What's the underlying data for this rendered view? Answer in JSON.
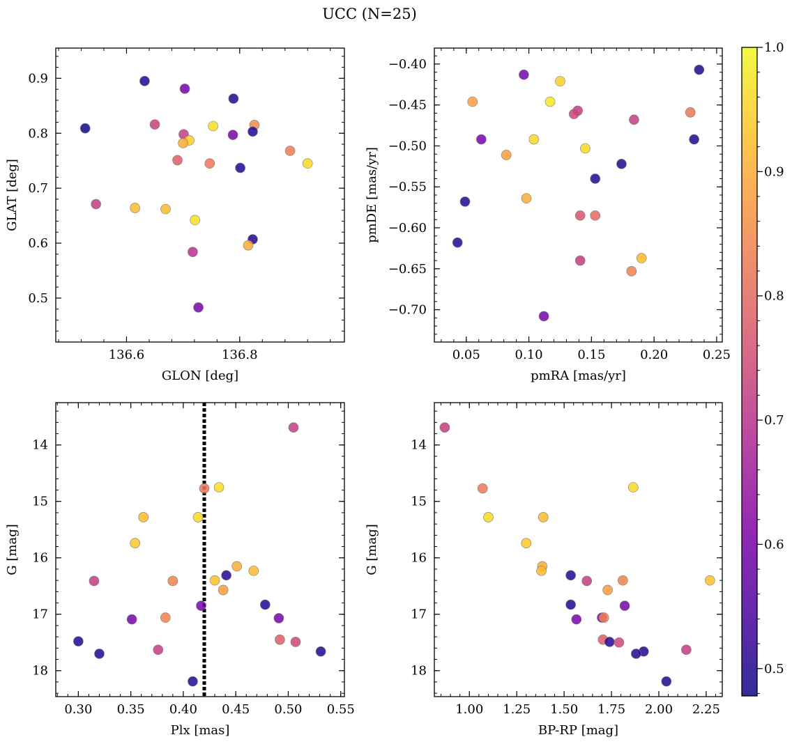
{
  "title": "UCC (N=25)",
  "colorbar": {
    "range": [
      0.478,
      1.0
    ],
    "ticks": [
      0.5,
      0.6,
      0.7,
      0.8,
      0.9,
      1.0
    ],
    "tick_labels": [
      "0.5",
      "0.6",
      "0.7",
      "0.8",
      "0.9",
      "1.0"
    ],
    "colormap": "plasma"
  },
  "chart_data": [
    {
      "type": "scatter",
      "xlabel": "GLON [deg]",
      "ylabel": "GLAT [deg]",
      "xlim": [
        136.475,
        136.985
      ],
      "ylim": [
        0.42,
        0.955
      ],
      "xticks": [
        136.6,
        136.8
      ],
      "xtick_labels": [
        "136.6",
        "136.8"
      ],
      "yticks": [
        0.5,
        0.6,
        0.7,
        0.8,
        0.9
      ],
      "ytick_labels": [
        "0.5",
        "0.6",
        "0.7",
        "0.8",
        "0.9"
      ],
      "points": [
        {
          "x": 136.527,
          "y": 0.809,
          "c": 0.48
        },
        {
          "x": 136.632,
          "y": 0.895,
          "c": 0.5
        },
        {
          "x": 136.703,
          "y": 0.881,
          "c": 0.6
        },
        {
          "x": 136.789,
          "y": 0.863,
          "c": 0.5
        },
        {
          "x": 136.65,
          "y": 0.816,
          "c": 0.73
        },
        {
          "x": 136.753,
          "y": 0.813,
          "c": 0.97
        },
        {
          "x": 136.826,
          "y": 0.815,
          "c": 0.85
        },
        {
          "x": 136.701,
          "y": 0.798,
          "c": 0.72
        },
        {
          "x": 136.788,
          "y": 0.797,
          "c": 0.6
        },
        {
          "x": 136.823,
          "y": 0.803,
          "c": 0.5
        },
        {
          "x": 136.711,
          "y": 0.787,
          "c": 0.95
        },
        {
          "x": 136.7,
          "y": 0.782,
          "c": 0.9
        },
        {
          "x": 136.889,
          "y": 0.768,
          "c": 0.83
        },
        {
          "x": 136.92,
          "y": 0.745,
          "c": 0.96
        },
        {
          "x": 136.69,
          "y": 0.751,
          "c": 0.78
        },
        {
          "x": 136.747,
          "y": 0.745,
          "c": 0.82
        },
        {
          "x": 136.801,
          "y": 0.737,
          "c": 0.5
        },
        {
          "x": 136.546,
          "y": 0.671,
          "c": 0.72
        },
        {
          "x": 136.615,
          "y": 0.664,
          "c": 0.92
        },
        {
          "x": 136.669,
          "y": 0.662,
          "c": 0.92
        },
        {
          "x": 136.721,
          "y": 0.642,
          "c": 0.97
        },
        {
          "x": 136.823,
          "y": 0.607,
          "c": 0.5
        },
        {
          "x": 136.815,
          "y": 0.596,
          "c": 0.9
        },
        {
          "x": 136.717,
          "y": 0.584,
          "c": 0.7
        },
        {
          "x": 136.727,
          "y": 0.483,
          "c": 0.6
        }
      ]
    },
    {
      "type": "scatter",
      "xlabel": "pmRA [mas/yr]",
      "ylabel": "pmDE [mas/yr]",
      "xlim": [
        0.0245,
        0.2545
      ],
      "ylim": [
        -0.7395,
        -0.3805
      ],
      "xticks": [
        0.05,
        0.1,
        0.15,
        0.2,
        0.25
      ],
      "xtick_labels": [
        "0.05",
        "0.10",
        "0.15",
        "0.20",
        "0.25"
      ],
      "yticks": [
        -0.4,
        -0.45,
        -0.5,
        -0.55,
        -0.6,
        -0.65,
        -0.7
      ],
      "ytick_labels": [
        "−0.40",
        "−0.45",
        "−0.50",
        "−0.55",
        "−0.60",
        "−0.65",
        "−0.70"
      ],
      "points": [
        {
          "x": 0.236,
          "y": -0.407,
          "c": 0.5
        },
        {
          "x": 0.096,
          "y": -0.413,
          "c": 0.6
        },
        {
          "x": 0.125,
          "y": -0.421,
          "c": 0.95
        },
        {
          "x": 0.055,
          "y": -0.446,
          "c": 0.88
        },
        {
          "x": 0.117,
          "y": -0.446,
          "c": 0.98
        },
        {
          "x": 0.139,
          "y": -0.457,
          "c": 0.72
        },
        {
          "x": 0.136,
          "y": -0.461,
          "c": 0.74
        },
        {
          "x": 0.229,
          "y": -0.459,
          "c": 0.82
        },
        {
          "x": 0.184,
          "y": -0.468,
          "c": 0.72
        },
        {
          "x": 0.062,
          "y": -0.492,
          "c": 0.6
        },
        {
          "x": 0.104,
          "y": -0.492,
          "c": 0.96
        },
        {
          "x": 0.232,
          "y": -0.492,
          "c": 0.5
        },
        {
          "x": 0.145,
          "y": -0.503,
          "c": 0.96
        },
        {
          "x": 0.082,
          "y": -0.511,
          "c": 0.88
        },
        {
          "x": 0.174,
          "y": -0.522,
          "c": 0.5
        },
        {
          "x": 0.153,
          "y": -0.54,
          "c": 0.5
        },
        {
          "x": 0.049,
          "y": -0.568,
          "c": 0.5
        },
        {
          "x": 0.098,
          "y": -0.564,
          "c": 0.9
        },
        {
          "x": 0.141,
          "y": -0.585,
          "c": 0.76
        },
        {
          "x": 0.153,
          "y": -0.585,
          "c": 0.8
        },
        {
          "x": 0.043,
          "y": -0.618,
          "c": 0.5
        },
        {
          "x": 0.19,
          "y": -0.637,
          "c": 0.92
        },
        {
          "x": 0.141,
          "y": -0.64,
          "c": 0.72
        },
        {
          "x": 0.182,
          "y": -0.653,
          "c": 0.84
        },
        {
          "x": 0.112,
          "y": -0.708,
          "c": 0.6
        }
      ]
    },
    {
      "type": "scatter",
      "xlabel": "Plx [mas]",
      "ylabel": "G [mag]",
      "xlim": [
        0.2785,
        0.5535
      ],
      "ylim": [
        18.46,
        13.25
      ],
      "y_inverted": true,
      "xticks": [
        0.3,
        0.35,
        0.4,
        0.45,
        0.5,
        0.55
      ],
      "xtick_labels": [
        "0.30",
        "0.35",
        "0.40",
        "0.45",
        "0.50",
        "0.55"
      ],
      "yticks": [
        14,
        15,
        16,
        17,
        18
      ],
      "ytick_labels": [
        "14",
        "15",
        "16",
        "17",
        "18"
      ],
      "vline": 0.42,
      "points": [
        {
          "x": 0.505,
          "y": 13.69,
          "c": 0.72
        },
        {
          "x": 0.42,
          "y": 14.77,
          "c": 0.82
        },
        {
          "x": 0.434,
          "y": 14.75,
          "c": 0.96
        },
        {
          "x": 0.362,
          "y": 15.28,
          "c": 0.92
        },
        {
          "x": 0.414,
          "y": 15.28,
          "c": 0.96
        },
        {
          "x": 0.354,
          "y": 15.74,
          "c": 0.94
        },
        {
          "x": 0.451,
          "y": 16.15,
          "c": 0.9
        },
        {
          "x": 0.467,
          "y": 16.23,
          "c": 0.92
        },
        {
          "x": 0.441,
          "y": 16.31,
          "c": 0.5
        },
        {
          "x": 0.39,
          "y": 16.41,
          "c": 0.84
        },
        {
          "x": 0.43,
          "y": 16.4,
          "c": 0.93
        },
        {
          "x": 0.315,
          "y": 16.41,
          "c": 0.72
        },
        {
          "x": 0.438,
          "y": 16.57,
          "c": 0.88
        },
        {
          "x": 0.417,
          "y": 16.85,
          "c": 0.6
        },
        {
          "x": 0.478,
          "y": 16.83,
          "c": 0.5
        },
        {
          "x": 0.383,
          "y": 17.06,
          "c": 0.84
        },
        {
          "x": 0.491,
          "y": 17.07,
          "c": 0.6
        },
        {
          "x": 0.351,
          "y": 17.09,
          "c": 0.6
        },
        {
          "x": 0.492,
          "y": 17.45,
          "c": 0.78
        },
        {
          "x": 0.507,
          "y": 17.49,
          "c": 0.74
        },
        {
          "x": 0.3,
          "y": 17.48,
          "c": 0.5
        },
        {
          "x": 0.376,
          "y": 17.63,
          "c": 0.72
        },
        {
          "x": 0.531,
          "y": 17.66,
          "c": 0.5
        },
        {
          "x": 0.32,
          "y": 17.7,
          "c": 0.5
        },
        {
          "x": 0.409,
          "y": 18.19,
          "c": 0.5
        }
      ]
    },
    {
      "type": "scatter",
      "xlabel": "BP-RP [mag]",
      "ylabel": "G [mag]",
      "xlim": [
        0.815,
        2.335
      ],
      "ylim": [
        18.46,
        13.25
      ],
      "y_inverted": true,
      "xticks": [
        1.0,
        1.25,
        1.5,
        1.75,
        2.0,
        2.25
      ],
      "xtick_labels": [
        "1.00",
        "1.25",
        "1.50",
        "1.75",
        "2.00",
        "2.25"
      ],
      "yticks": [
        14,
        15,
        16,
        17,
        18
      ],
      "ytick_labels": [
        "14",
        "15",
        "16",
        "17",
        "18"
      ],
      "points": [
        {
          "x": 0.87,
          "y": 13.69,
          "c": 0.72
        },
        {
          "x": 1.07,
          "y": 14.77,
          "c": 0.82
        },
        {
          "x": 1.865,
          "y": 14.75,
          "c": 0.96
        },
        {
          "x": 1.1,
          "y": 15.28,
          "c": 0.96
        },
        {
          "x": 1.39,
          "y": 15.28,
          "c": 0.92
        },
        {
          "x": 1.3,
          "y": 15.74,
          "c": 0.94
        },
        {
          "x": 1.385,
          "y": 16.15,
          "c": 0.9
        },
        {
          "x": 1.38,
          "y": 16.23,
          "c": 0.92
        },
        {
          "x": 1.535,
          "y": 16.31,
          "c": 0.5
        },
        {
          "x": 1.62,
          "y": 16.41,
          "c": 0.72
        },
        {
          "x": 1.81,
          "y": 16.4,
          "c": 0.84
        },
        {
          "x": 2.27,
          "y": 16.4,
          "c": 0.93
        },
        {
          "x": 1.73,
          "y": 16.57,
          "c": 0.88
        },
        {
          "x": 1.535,
          "y": 16.83,
          "c": 0.5
        },
        {
          "x": 1.82,
          "y": 16.85,
          "c": 0.6
        },
        {
          "x": 1.7,
          "y": 17.06,
          "c": 0.6
        },
        {
          "x": 1.71,
          "y": 17.06,
          "c": 0.84
        },
        {
          "x": 1.565,
          "y": 17.09,
          "c": 0.6
        },
        {
          "x": 1.705,
          "y": 17.45,
          "c": 0.78
        },
        {
          "x": 1.74,
          "y": 17.49,
          "c": 0.5
        },
        {
          "x": 1.79,
          "y": 17.5,
          "c": 0.74
        },
        {
          "x": 2.145,
          "y": 17.63,
          "c": 0.72
        },
        {
          "x": 1.92,
          "y": 17.66,
          "c": 0.5
        },
        {
          "x": 1.88,
          "y": 17.7,
          "c": 0.5
        },
        {
          "x": 2.04,
          "y": 18.19,
          "c": 0.5
        }
      ]
    }
  ]
}
